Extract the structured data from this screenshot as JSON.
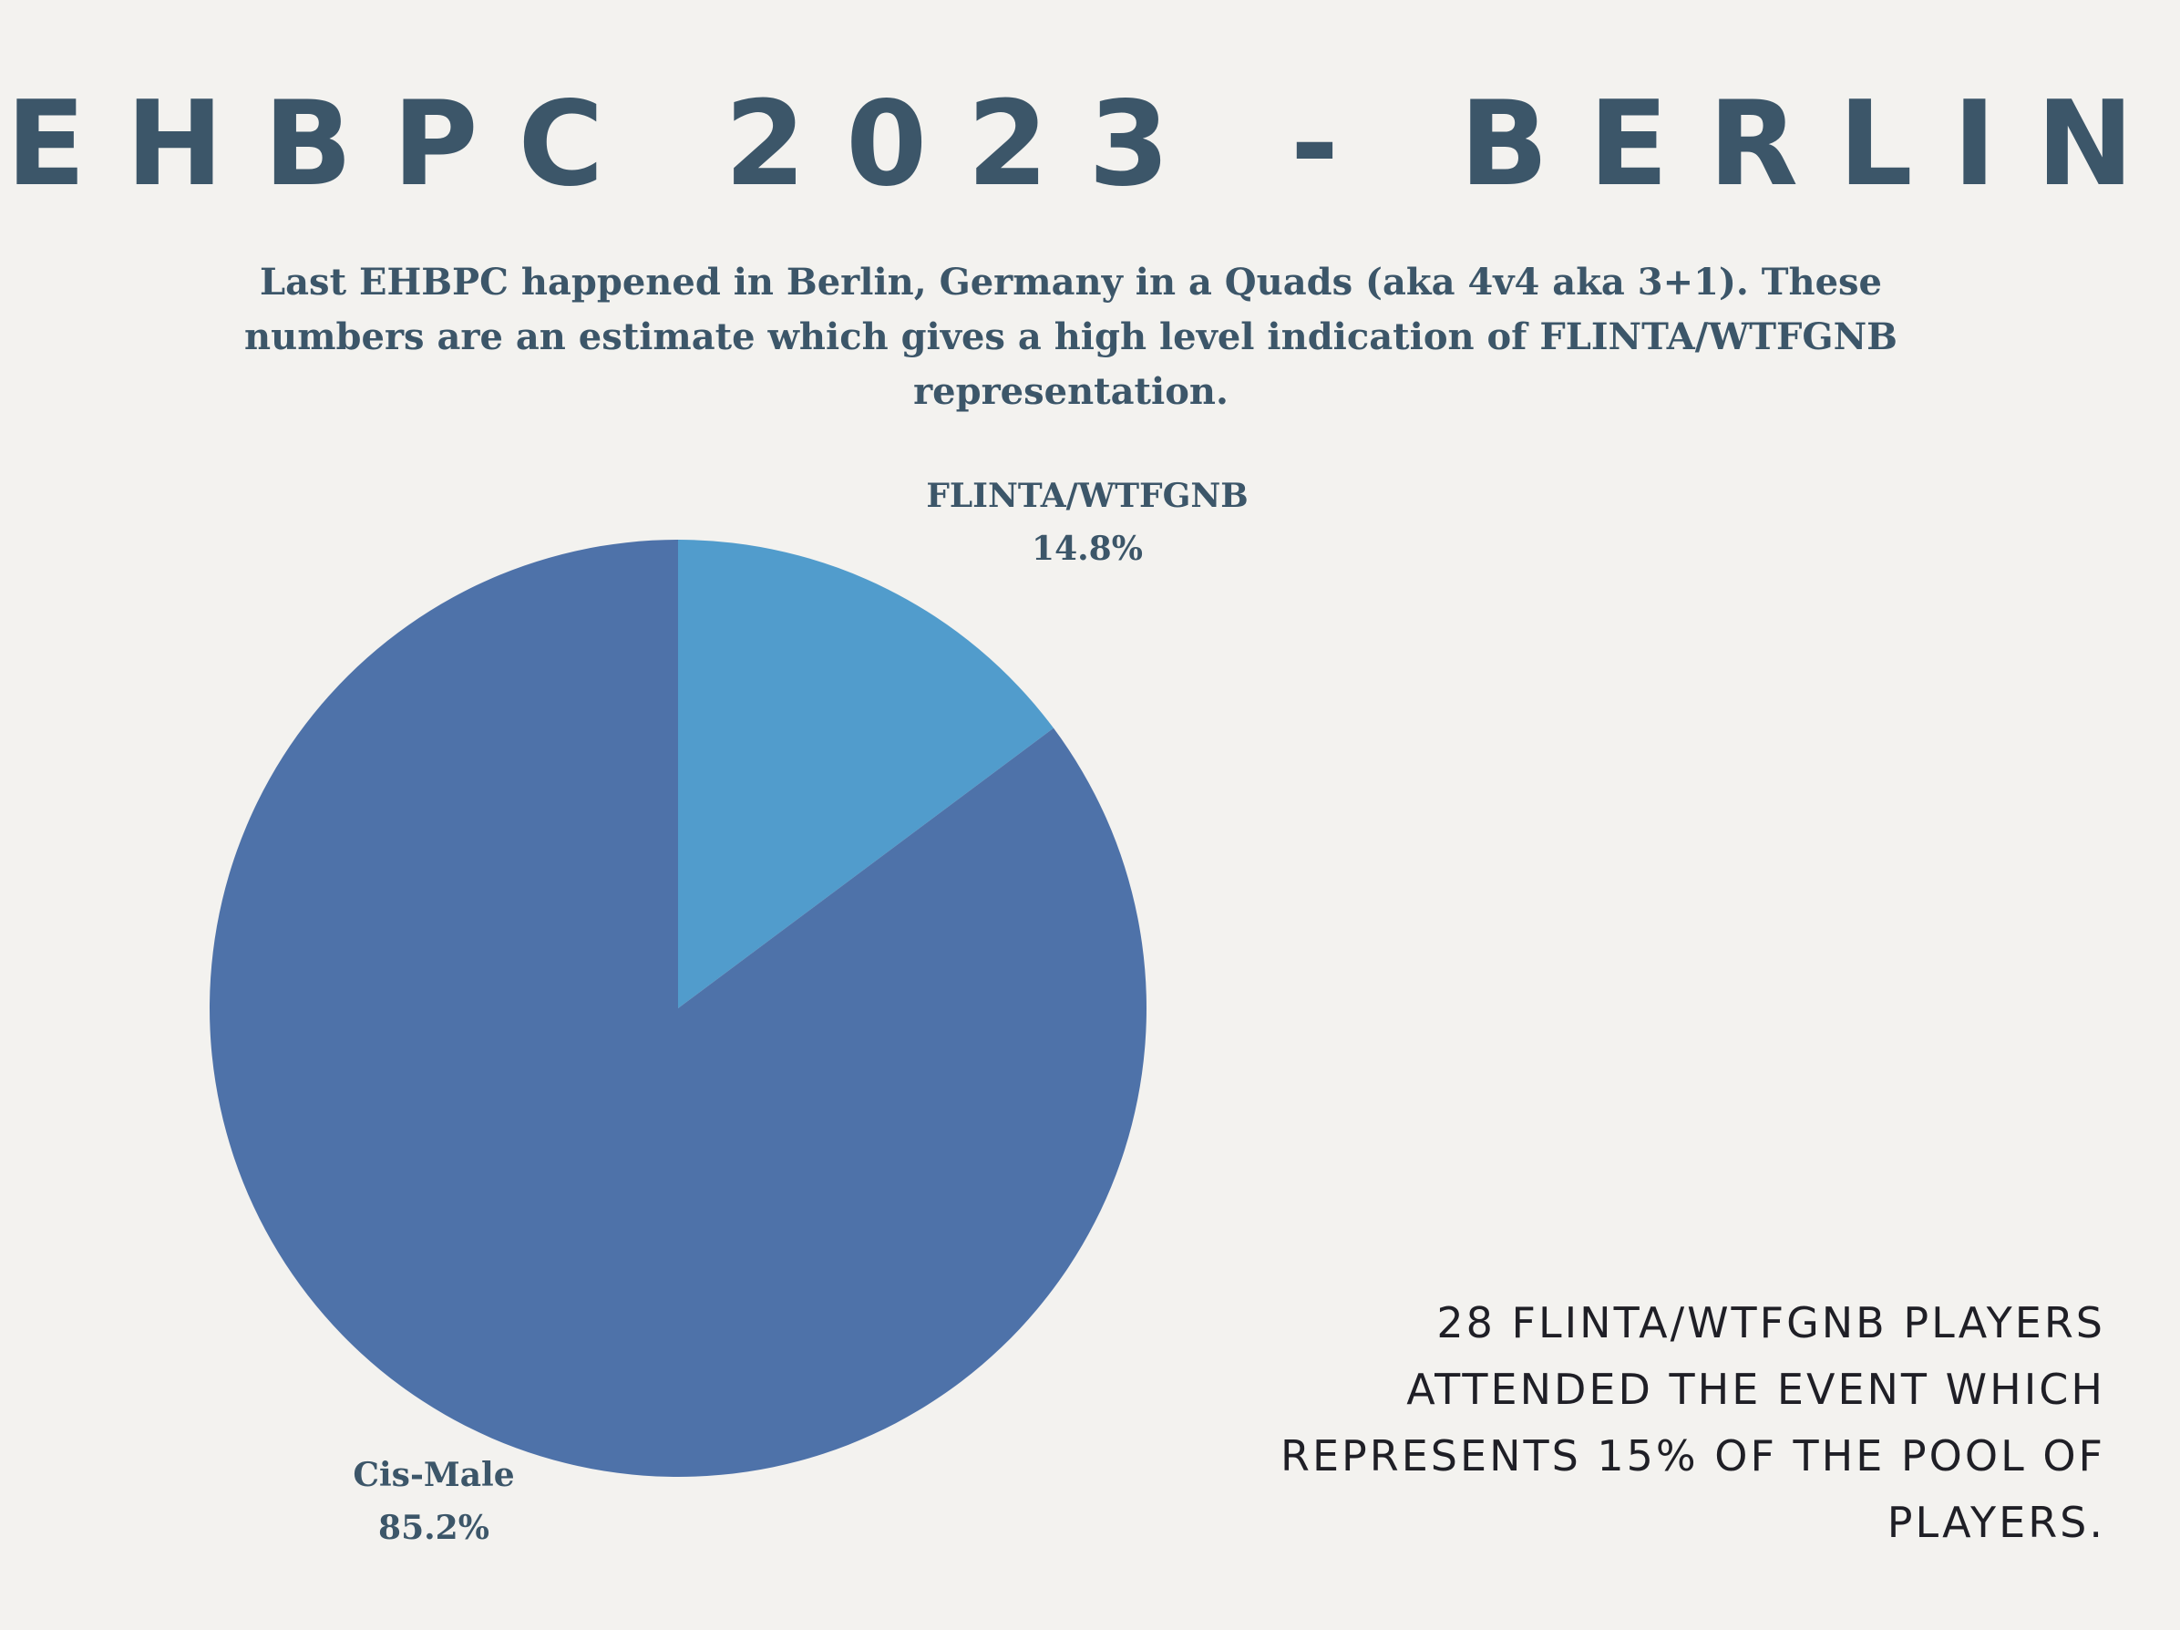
{
  "title": "EHBPC 2023 - BERLIN",
  "subtitle": "Last EHBPC happened in Berlin, Germany in a Quads (aka 4v4 aka 3+1). These numbers are an estimate which gives a high level indication of FLINTA/WTFGNB representation.",
  "note": "28 FLINTA/WTFGNB PLAYERS ATTENDED THE EVENT WHICH REPRESENTS 15% OF THE POOL OF PLAYERS.",
  "chart_data": {
    "type": "pie",
    "start": "12 o'clock, clockwise",
    "slices": [
      {
        "label": "FLINTA/WTFGNB",
        "value": 14.8,
        "value_label": "14.8%",
        "color": "#519ccc"
      },
      {
        "label": "Cis-Male",
        "value": 85.2,
        "value_label": "85.2%",
        "color": "#4e72a9"
      }
    ]
  }
}
